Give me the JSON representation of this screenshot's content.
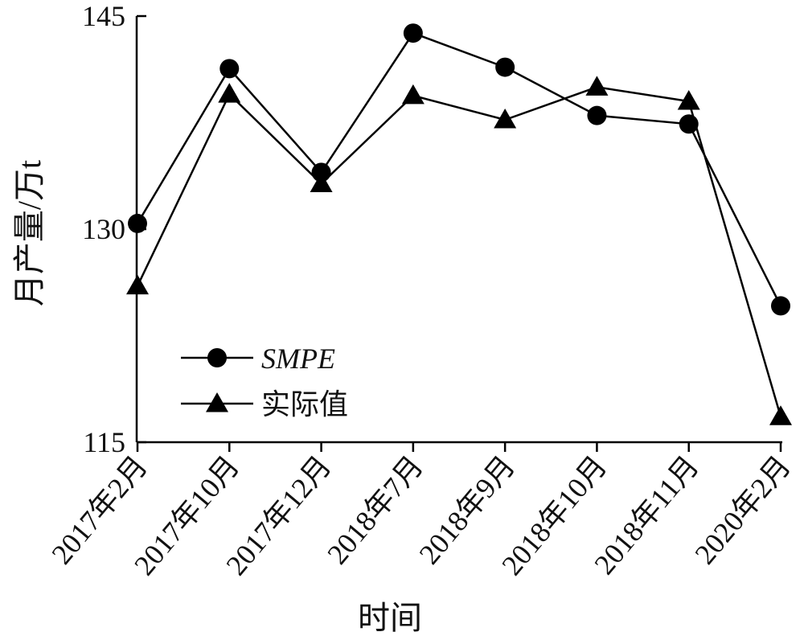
{
  "chart_data": {
    "type": "line",
    "title": "",
    "xlabel": "时间",
    "ylabel": "月产量/万t",
    "categories": [
      "2017年2月",
      "2017年10月",
      "2017年12月",
      "2018年7月",
      "2018年9月",
      "2018年10月",
      "2018年11月",
      "2020年2月"
    ],
    "ylim": [
      115,
      145
    ],
    "yticks": [
      "115",
      "130",
      "145"
    ],
    "grid": false,
    "legend_position": "bottom-left",
    "series": [
      {
        "name": "SMPE",
        "marker": "circle",
        "color": "#000000",
        "values": [
          130.4,
          141.3,
          134.0,
          143.8,
          141.4,
          138.0,
          137.4,
          124.6
        ]
      },
      {
        "name": "实际值",
        "marker": "triangle",
        "color": "#000000",
        "values": [
          126.0,
          139.5,
          133.2,
          139.4,
          137.7,
          140.0,
          139.0,
          116.8
        ]
      }
    ]
  }
}
